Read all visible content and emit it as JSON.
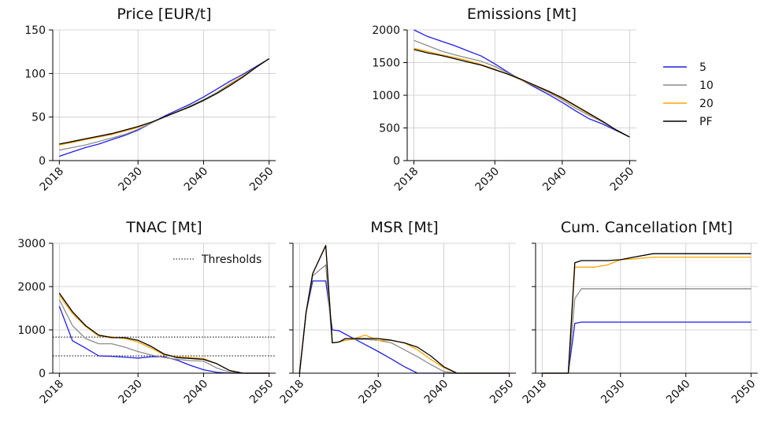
{
  "legend": {
    "entries": [
      {
        "label": "5",
        "color": "#1f1fe6"
      },
      {
        "label": "10",
        "color": "#8c8c8c"
      },
      {
        "label": "20",
        "color": "#ffa500"
      },
      {
        "label": "PF",
        "color": "#000000"
      }
    ]
  },
  "chart_data": [
    {
      "type": "line",
      "title": "Price [EUR/t]",
      "xlabel": "",
      "ylabel": "",
      "xlim": [
        2017,
        2051
      ],
      "ylim": [
        0,
        150
      ],
      "xticks": [
        2018,
        2030,
        2040,
        2050
      ],
      "yticks": [
        0,
        50,
        100,
        150
      ],
      "grid": true,
      "x": [
        2018,
        2020,
        2022,
        2024,
        2026,
        2028,
        2030,
        2032,
        2034,
        2036,
        2038,
        2040,
        2042,
        2044,
        2046,
        2048,
        2050
      ],
      "series": [
        {
          "name": "5",
          "color": "#1f1fe6",
          "values": [
            5,
            10,
            15,
            19,
            24,
            29,
            35,
            43,
            51,
            58,
            65,
            73,
            82,
            91,
            99,
            108,
            117
          ]
        },
        {
          "name": "10",
          "color": "#8c8c8c",
          "values": [
            12,
            15,
            18,
            22,
            26,
            30,
            36,
            43,
            50,
            56,
            63,
            70,
            78,
            88,
            97,
            107,
            117
          ]
        },
        {
          "name": "20",
          "color": "#ffa500",
          "values": [
            18,
            21,
            24,
            27,
            30,
            34,
            38,
            44,
            50,
            56,
            62,
            69,
            77,
            87,
            97,
            107,
            117
          ]
        },
        {
          "name": "PF",
          "color": "#000000",
          "values": [
            19,
            22,
            25,
            28,
            31,
            35,
            39,
            44,
            50,
            56,
            62,
            69,
            77,
            86,
            96,
            107,
            117
          ]
        }
      ]
    },
    {
      "type": "line",
      "title": "Emissions [Mt]",
      "xlabel": "",
      "ylabel": "",
      "xlim": [
        2017,
        2051
      ],
      "ylim": [
        0,
        2000
      ],
      "xticks": [
        2018,
        2030,
        2040,
        2050
      ],
      "yticks": [
        0,
        500,
        1000,
        1500,
        2000
      ],
      "grid": true,
      "x": [
        2018,
        2020,
        2022,
        2024,
        2026,
        2028,
        2030,
        2032,
        2034,
        2036,
        2038,
        2040,
        2042,
        2044,
        2046,
        2048,
        2050
      ],
      "series": [
        {
          "name": "5",
          "color": "#1f1fe6",
          "values": [
            2000,
            1900,
            1830,
            1760,
            1680,
            1600,
            1480,
            1350,
            1230,
            1120,
            1010,
            890,
            760,
            640,
            560,
            460,
            360
          ]
        },
        {
          "name": "10",
          "color": "#8c8c8c",
          "values": [
            1840,
            1760,
            1680,
            1620,
            1570,
            1520,
            1440,
            1340,
            1240,
            1140,
            1040,
            930,
            800,
            690,
            590,
            470,
            360
          ]
        },
        {
          "name": "20",
          "color": "#ffa500",
          "values": [
            1720,
            1670,
            1620,
            1580,
            1530,
            1470,
            1400,
            1320,
            1230,
            1140,
            1050,
            950,
            830,
            710,
            600,
            470,
            360
          ]
        },
        {
          "name": "PF",
          "color": "#000000",
          "values": [
            1700,
            1650,
            1610,
            1560,
            1510,
            1460,
            1390,
            1320,
            1240,
            1150,
            1060,
            960,
            840,
            720,
            600,
            470,
            360
          ]
        }
      ]
    },
    {
      "type": "line",
      "title": "TNAC [Mt]",
      "xlabel": "",
      "ylabel": "",
      "xlim": [
        2017,
        2051
      ],
      "ylim": [
        0,
        3000
      ],
      "xticks": [
        2018,
        2030,
        2040,
        2050
      ],
      "yticks": [
        0,
        1000,
        2000,
        3000
      ],
      "grid": true,
      "thresholds": {
        "label": "Thresholds",
        "values": [
          833,
          400
        ]
      },
      "x": [
        2018,
        2020,
        2022,
        2024,
        2026,
        2028,
        2030,
        2032,
        2034,
        2036,
        2038,
        2040,
        2042,
        2044,
        2046,
        2048,
        2050
      ],
      "series": [
        {
          "name": "5",
          "color": "#1f1fe6",
          "values": [
            1550,
            750,
            580,
            400,
            390,
            370,
            350,
            380,
            380,
            300,
            180,
            80,
            20,
            0,
            0,
            0,
            0
          ]
        },
        {
          "name": "10",
          "color": "#8c8c8c",
          "values": [
            1700,
            1100,
            800,
            680,
            680,
            600,
            500,
            420,
            360,
            320,
            290,
            280,
            120,
            20,
            0,
            0,
            0
          ]
        },
        {
          "name": "20",
          "color": "#ffa500",
          "values": [
            1800,
            1380,
            1080,
            860,
            840,
            800,
            720,
            580,
            420,
            380,
            360,
            340,
            220,
            60,
            0,
            0,
            0
          ]
        },
        {
          "name": "PF",
          "color": "#000000",
          "values": [
            1850,
            1420,
            1100,
            880,
            820,
            820,
            760,
            620,
            440,
            360,
            340,
            320,
            220,
            60,
            0,
            0,
            0
          ]
        }
      ]
    },
    {
      "type": "line",
      "title": "MSR [Mt]",
      "xlabel": "",
      "ylabel": "",
      "xlim": [
        2017,
        2051
      ],
      "ylim": [
        0,
        3000
      ],
      "xticks": [
        2018,
        2030,
        2040,
        2050
      ],
      "yticks": [
        0,
        1000,
        2000,
        3000
      ],
      "grid": true,
      "x": [
        2018,
        2019,
        2020,
        2022,
        2023,
        2024,
        2025,
        2026,
        2028,
        2030,
        2032,
        2034,
        2036,
        2038,
        2040,
        2042,
        2044,
        2050
      ],
      "series": [
        {
          "name": "5",
          "color": "#1f1fe6",
          "values": [
            0,
            1400,
            2130,
            2130,
            1000,
            980,
            900,
            820,
            660,
            500,
            330,
            150,
            0,
            0,
            0,
            0,
            0,
            0
          ]
        },
        {
          "name": "10",
          "color": "#8c8c8c",
          "values": [
            0,
            1400,
            2250,
            2500,
            700,
            720,
            760,
            780,
            780,
            760,
            700,
            540,
            380,
            200,
            40,
            0,
            0,
            0
          ]
        },
        {
          "name": "20",
          "color": "#ffa500",
          "values": [
            0,
            1400,
            2300,
            2950,
            700,
            720,
            760,
            780,
            880,
            760,
            760,
            700,
            540,
            320,
            130,
            0,
            0,
            0
          ]
        },
        {
          "name": "PF",
          "color": "#000000",
          "values": [
            0,
            1400,
            2300,
            2950,
            700,
            720,
            800,
            800,
            800,
            800,
            760,
            700,
            600,
            400,
            150,
            0,
            0,
            0
          ]
        }
      ]
    },
    {
      "type": "line",
      "title": "Cum. Cancellation [Mt]",
      "xlabel": "",
      "ylabel": "",
      "xlim": [
        2017,
        2051
      ],
      "ylim": [
        0,
        3000
      ],
      "xticks": [
        2018,
        2030,
        2040,
        2050
      ],
      "yticks": [
        0,
        1000,
        2000,
        3000
      ],
      "grid": true,
      "x": [
        2018,
        2022,
        2023,
        2024,
        2026,
        2028,
        2030,
        2032,
        2035,
        2040,
        2045,
        2050
      ],
      "series": [
        {
          "name": "5",
          "color": "#1f1fe6",
          "values": [
            0,
            0,
            1150,
            1180,
            1180,
            1180,
            1180,
            1180,
            1180,
            1180,
            1180,
            1180
          ]
        },
        {
          "name": "10",
          "color": "#8c8c8c",
          "values": [
            0,
            0,
            1720,
            1950,
            1950,
            1950,
            1950,
            1950,
            1950,
            1950,
            1950,
            1950
          ]
        },
        {
          "name": "20",
          "color": "#ffa500",
          "values": [
            0,
            0,
            2450,
            2450,
            2450,
            2500,
            2620,
            2640,
            2680,
            2680,
            2680,
            2680
          ]
        },
        {
          "name": "PF",
          "color": "#000000",
          "values": [
            0,
            0,
            2550,
            2600,
            2600,
            2600,
            2620,
            2680,
            2760,
            2760,
            2760,
            2760
          ]
        }
      ]
    }
  ]
}
